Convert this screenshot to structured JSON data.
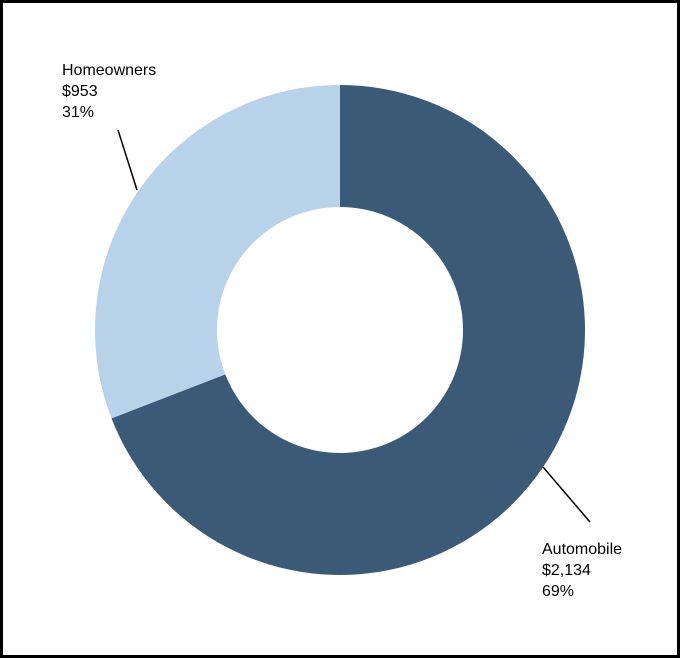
{
  "chart_data": {
    "type": "pie",
    "donut": true,
    "title": "",
    "categories": [
      "Automobile",
      "Homeowners"
    ],
    "values": [
      2134,
      953
    ],
    "value_labels": [
      "$2,134",
      "$953"
    ],
    "percent_labels": [
      "69%",
      "31%"
    ],
    "colors": [
      "#3b5a78",
      "#b8d3e9"
    ],
    "start": "12 o'clock",
    "legend": "none"
  }
}
